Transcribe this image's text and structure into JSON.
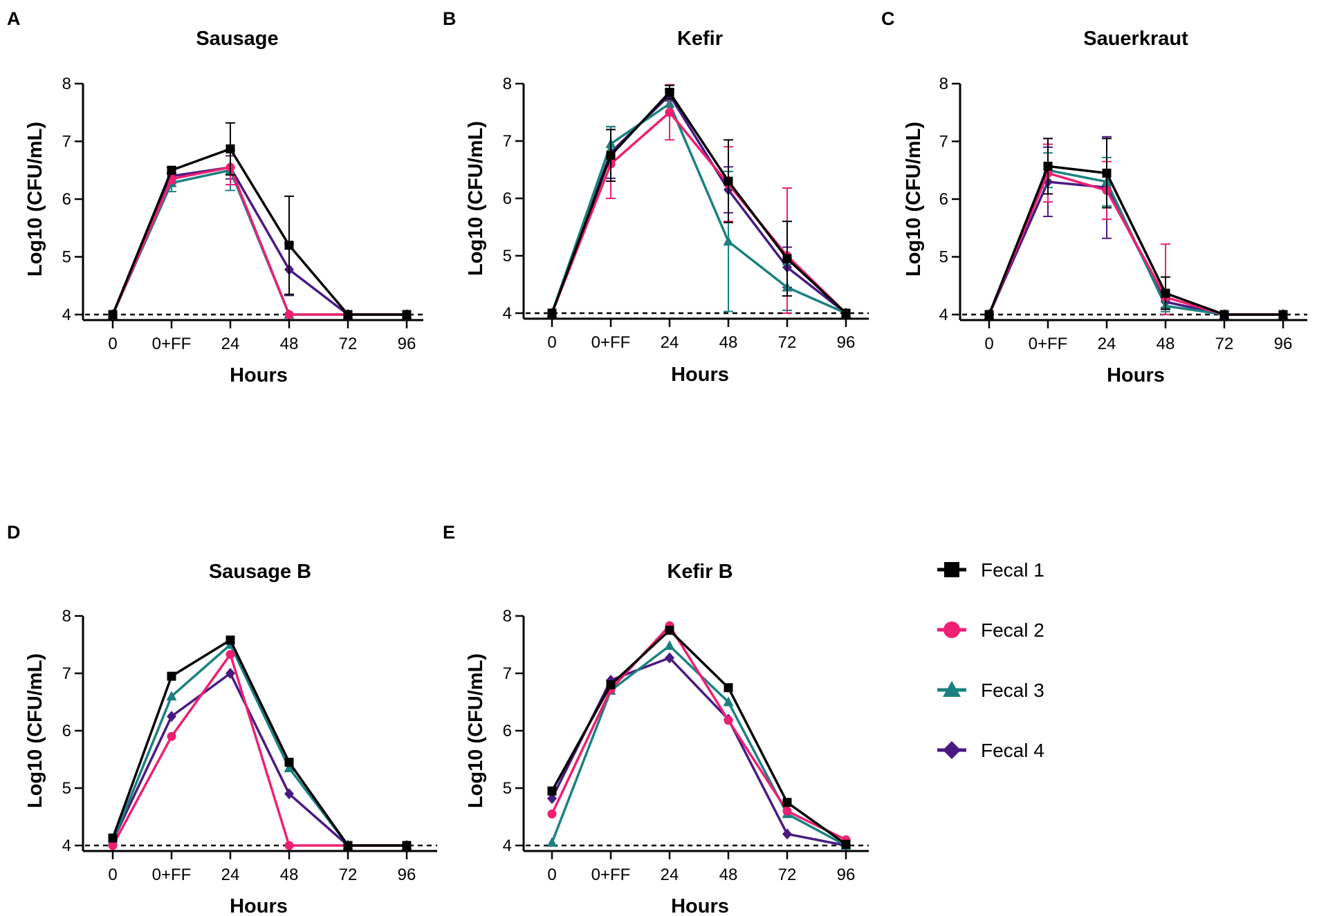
{
  "legend": [
    {
      "name": "Fecal 1",
      "color": "#000000",
      "marker": "square"
    },
    {
      "name": "Fecal 2",
      "color": "#ef1f72",
      "marker": "circle"
    },
    {
      "name": "Fecal 3",
      "color": "#1a8180",
      "marker": "triangle"
    },
    {
      "name": "Fecal 4",
      "color": "#4a1a82",
      "marker": "diamond"
    }
  ],
  "chart_data": [
    {
      "panel": "A",
      "title": "Sausage",
      "type": "line",
      "categories": [
        "0",
        "0+FF",
        "24",
        "48",
        "72",
        "96"
      ],
      "xlabel": "Hours",
      "ylabel": "Log10 (CFU/mL)",
      "ylim": [
        4,
        8
      ],
      "yticks": [
        "4",
        "5",
        "6",
        "7",
        "8"
      ],
      "detection_limit": 4,
      "series": [
        {
          "name": "Fecal 1",
          "values": [
            4,
            6.5,
            6.87,
            5.2,
            4,
            4
          ],
          "errors": [
            0,
            0.05,
            0.45,
            0.85,
            0,
            0
          ]
        },
        {
          "name": "Fecal 2",
          "values": [
            4,
            6.35,
            6.55,
            4,
            4,
            4
          ],
          "errors": [
            0,
            0.08,
            0.3,
            0,
            0,
            0
          ]
        },
        {
          "name": "Fecal 3",
          "values": [
            4,
            6.28,
            6.5,
            4,
            4,
            4
          ],
          "errors": [
            0,
            0.15,
            0.35,
            0,
            0,
            0
          ]
        },
        {
          "name": "Fecal 4",
          "values": [
            4,
            6.4,
            6.55,
            4.78,
            4,
            4
          ],
          "errors": [
            0,
            0.05,
            0.2,
            0.45,
            0,
            0
          ]
        }
      ]
    },
    {
      "panel": "B",
      "title": "Kefir",
      "type": "line",
      "categories": [
        "0",
        "0+FF",
        "24",
        "48",
        "72",
        "96"
      ],
      "xlabel": "Hours",
      "ylabel": "Log10 (CFU/mL)",
      "ylim": [
        4,
        8
      ],
      "yticks": [
        "4",
        "5",
        "6",
        "7",
        "8"
      ],
      "detection_limit": 4,
      "series": [
        {
          "name": "Fecal 1",
          "values": [
            4,
            6.75,
            7.85,
            6.3,
            4.95,
            4
          ],
          "errors": [
            0,
            0.45,
            0.12,
            0.72,
            0.65,
            0
          ]
        },
        {
          "name": "Fecal 2",
          "values": [
            4,
            6.6,
            7.5,
            6.25,
            5.0,
            4
          ],
          "errors": [
            0,
            0.6,
            0.48,
            0.65,
            1.18,
            0
          ]
        },
        {
          "name": "Fecal 3",
          "values": [
            4,
            6.95,
            7.65,
            5.25,
            4.45,
            4
          ],
          "errors": [
            0,
            0.3,
            0.2,
            1.22,
            0.4,
            0
          ]
        },
        {
          "name": "Fecal 4",
          "values": [
            4,
            6.8,
            7.8,
            6.15,
            4.8,
            4
          ],
          "errors": [
            0,
            0.45,
            0.1,
            0.4,
            0.35,
            0
          ]
        }
      ]
    },
    {
      "panel": "C",
      "title": "Sauerkraut",
      "type": "line",
      "categories": [
        "0",
        "0+FF",
        "24",
        "48",
        "72",
        "96"
      ],
      "xlabel": "Hours",
      "ylabel": "Log10 (CFU/mL)",
      "ylim": [
        4,
        8
      ],
      "yticks": [
        "4",
        "5",
        "6",
        "7",
        "8"
      ],
      "detection_limit": 4,
      "series": [
        {
          "name": "Fecal 1",
          "values": [
            4,
            6.57,
            6.45,
            4.37,
            4,
            4
          ],
          "errors": [
            0,
            0.48,
            0.6,
            0.28,
            0,
            0
          ]
        },
        {
          "name": "Fecal 2",
          "values": [
            4,
            6.45,
            6.15,
            4.3,
            4,
            4
          ],
          "errors": [
            0,
            0.5,
            0.5,
            0.92,
            0,
            0
          ]
        },
        {
          "name": "Fecal 3",
          "values": [
            4,
            6.5,
            6.3,
            4.15,
            4,
            4
          ],
          "errors": [
            0,
            0.3,
            0.42,
            0.1,
            0,
            0
          ]
        },
        {
          "name": "Fecal 4",
          "values": [
            4,
            6.3,
            6.2,
            4.22,
            4,
            4
          ],
          "errors": [
            0,
            0.6,
            0.88,
            0.1,
            0,
            0
          ]
        }
      ]
    },
    {
      "panel": "D",
      "title": "Sausage B",
      "type": "line",
      "categories": [
        "0",
        "0+FF",
        "24",
        "48",
        "72",
        "96"
      ],
      "xlabel": "Hours",
      "ylabel": "Log10 (CFU/mL)",
      "ylim": [
        4,
        8
      ],
      "yticks": [
        "4",
        "5",
        "6",
        "7",
        "8"
      ],
      "detection_limit": 4,
      "series": [
        {
          "name": "Fecal 1",
          "values": [
            4.13,
            6.95,
            7.58,
            5.45,
            4,
            4
          ]
        },
        {
          "name": "Fecal 2",
          "values": [
            4,
            5.9,
            7.33,
            4,
            4,
            4
          ]
        },
        {
          "name": "Fecal 3",
          "values": [
            4.08,
            6.6,
            7.5,
            5.35,
            4,
            4
          ]
        },
        {
          "name": "Fecal 4",
          "values": [
            4.08,
            6.25,
            7.0,
            4.9,
            4,
            4
          ]
        }
      ]
    },
    {
      "panel": "E",
      "title": "Kefir B",
      "type": "line",
      "categories": [
        "0",
        "0+FF",
        "24",
        "48",
        "72",
        "96"
      ],
      "xlabel": "Hours",
      "ylabel": "Log10 (CFU/mL)",
      "ylim": [
        4,
        8
      ],
      "yticks": [
        "4",
        "5",
        "6",
        "7",
        "8"
      ],
      "detection_limit": 4,
      "series": [
        {
          "name": "Fecal 1",
          "values": [
            4.95,
            6.8,
            7.75,
            6.75,
            4.75,
            4.02
          ]
        },
        {
          "name": "Fecal 2",
          "values": [
            4.55,
            6.72,
            7.83,
            6.18,
            4.6,
            4.1
          ]
        },
        {
          "name": "Fecal 3",
          "values": [
            4.05,
            6.7,
            7.48,
            6.5,
            4.55,
            4.0
          ]
        },
        {
          "name": "Fecal 4",
          "values": [
            4.82,
            6.88,
            7.27,
            6.2,
            4.2,
            4.0
          ]
        }
      ]
    }
  ]
}
